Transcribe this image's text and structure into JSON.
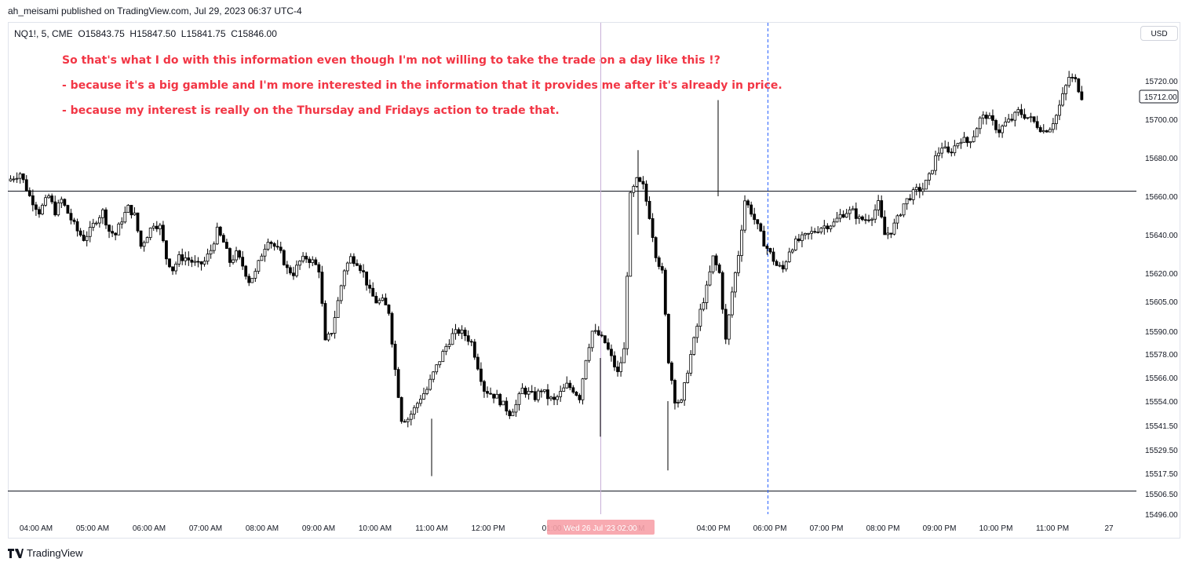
{
  "header": {
    "published": "ah_meisami published on TradingView.com, Jul 29, 2023 06:37 UTC-4",
    "symbol": "NQ1!, 5, CME",
    "ohlc": "O15843.75  H15847.50  L15841.75  C15846.00",
    "currency": "USD"
  },
  "annotations": [
    "So that's what I do with this information even though I'm not willing to take the trade on a day like this !?",
    "- because it's a big gamble and I'm more interested in the information that it provides me after it's already in price.",
    "- because my interest is really on the Thursday and Fridays action to trade that."
  ],
  "footer": {
    "brand": "TradingView"
  },
  "colors": {
    "text_red": "#f23645",
    "candle": "#000000",
    "grid_line": "#000000",
    "vline": "#2962ff",
    "crosshair_label": "#f7a1a8"
  },
  "chart_data": {
    "type": "candlestick",
    "interval": "5",
    "y_ticks": [
      "15496.00",
      "15506.50",
      "15517.50",
      "15529.50",
      "15541.50",
      "15554.00",
      "15566.00",
      "15578.00",
      "15590.00",
      "15605.00",
      "15620.00",
      "15640.00",
      "15660.00",
      "15680.00",
      "15700.00",
      "15720.00"
    ],
    "x_ticks": [
      "04:00 AM",
      "05:00 AM",
      "06:00 AM",
      "07:00 AM",
      "08:00 AM",
      "09:00 AM",
      "10:00 AM",
      "11:00 AM",
      "12:00 PM",
      "01:00 PM",
      "03:00 PM",
      "04:00 PM",
      "06:00 PM",
      "07:00 PM",
      "08:00 PM",
      "09:00 PM",
      "10:00 PM",
      "11:00 PM",
      "27"
    ],
    "last_price": "15712.00",
    "hlines": [
      15663,
      15508
    ],
    "crosshair_label": "Wed 26 Jul '23 02:00",
    "grid": false,
    "price_path": [
      [
        0,
        15668
      ],
      [
        4,
        15672
      ],
      [
        7,
        15660
      ],
      [
        10,
        15652
      ],
      [
        13,
        15660
      ],
      [
        15,
        15652
      ],
      [
        17,
        15658
      ],
      [
        20,
        15648
      ],
      [
        22,
        15642
      ],
      [
        24,
        15638
      ],
      [
        26,
        15642
      ],
      [
        28,
        15648
      ],
      [
        30,
        15652
      ],
      [
        32,
        15642
      ],
      [
        34,
        15640
      ],
      [
        36,
        15648
      ],
      [
        38,
        15654
      ],
      [
        40,
        15650
      ],
      [
        42,
        15634
      ],
      [
        44,
        15640
      ],
      [
        46,
        15646
      ],
      [
        48,
        15644
      ],
      [
        50,
        15628
      ],
      [
        52,
        15622
      ],
      [
        54,
        15628
      ],
      [
        56,
        15628
      ],
      [
        58,
        15626
      ],
      [
        60,
        15624
      ],
      [
        62,
        15626
      ],
      [
        64,
        15632
      ],
      [
        66,
        15642
      ],
      [
        68,
        15636
      ],
      [
        70,
        15626
      ],
      [
        72,
        15630
      ],
      [
        74,
        15624
      ],
      [
        76,
        15616
      ],
      [
        78,
        15620
      ],
      [
        80,
        15630
      ],
      [
        82,
        15638
      ],
      [
        84,
        15634
      ],
      [
        86,
        15630
      ],
      [
        88,
        15622
      ],
      [
        90,
        15620
      ],
      [
        92,
        15626
      ],
      [
        94,
        15628
      ],
      [
        96,
        15626
      ],
      [
        98,
        15622
      ],
      [
        100,
        15584
      ],
      [
        102,
        15590
      ],
      [
        104,
        15605
      ],
      [
        106,
        15622
      ],
      [
        108,
        15628
      ],
      [
        110,
        15626
      ],
      [
        112,
        15620
      ],
      [
        114,
        15610
      ],
      [
        116,
        15605
      ],
      [
        118,
        15605
      ],
      [
        120,
        15600
      ],
      [
        122,
        15570
      ],
      [
        124,
        15545
      ],
      [
        126,
        15545
      ],
      [
        128,
        15550
      ],
      [
        130,
        15556
      ],
      [
        132,
        15560
      ],
      [
        134,
        15568
      ],
      [
        136,
        15575
      ],
      [
        138,
        15582
      ],
      [
        140,
        15588
      ],
      [
        142,
        15590
      ],
      [
        144,
        15588
      ],
      [
        146,
        15584
      ],
      [
        148,
        15572
      ],
      [
        150,
        15560
      ],
      [
        152,
        15558
      ],
      [
        154,
        15556
      ],
      [
        156,
        15552
      ],
      [
        158,
        15548
      ],
      [
        160,
        15552
      ],
      [
        162,
        15560
      ],
      [
        164,
        15558
      ],
      [
        166,
        15556
      ],
      [
        168,
        15560
      ],
      [
        170,
        15556
      ],
      [
        172,
        15554
      ],
      [
        174,
        15558
      ],
      [
        176,
        15562
      ],
      [
        178,
        15560
      ],
      [
        180,
        15556
      ],
      [
        182,
        15576
      ],
      [
        184,
        15590
      ],
      [
        186,
        15588
      ],
      [
        188,
        15584
      ],
      [
        190,
        15576
      ],
      [
        192,
        15568
      ],
      [
        194,
        15580
      ],
      [
        196,
        15660
      ],
      [
        198,
        15668
      ],
      [
        200,
        15665
      ],
      [
        202,
        15650
      ],
      [
        204,
        15630
      ],
      [
        206,
        15620
      ],
      [
        208,
        15575
      ],
      [
        210,
        15555
      ],
      [
        212,
        15553
      ],
      [
        214,
        15570
      ],
      [
        216,
        15585
      ],
      [
        218,
        15600
      ],
      [
        220,
        15612
      ],
      [
        222,
        15628
      ],
      [
        224,
        15620
      ],
      [
        226,
        15585
      ],
      [
        228,
        15610
      ],
      [
        230,
        15630
      ],
      [
        232,
        15658
      ],
      [
        234,
        15652
      ],
      [
        236,
        15644
      ],
      [
        238,
        15636
      ],
      [
        240,
        15630
      ],
      [
        242,
        15624
      ],
      [
        244,
        15622
      ],
      [
        246,
        15632
      ],
      [
        248,
        15636
      ],
      [
        250,
        15638
      ],
      [
        252,
        15640
      ],
      [
        254,
        15642
      ],
      [
        256,
        15644
      ],
      [
        258,
        15645
      ],
      [
        260,
        15646
      ],
      [
        262,
        15650
      ],
      [
        264,
        15652
      ],
      [
        266,
        15652
      ],
      [
        268,
        15648
      ],
      [
        270,
        15648
      ],
      [
        272,
        15650
      ],
      [
        274,
        15656
      ],
      [
        276,
        15640
      ],
      [
        278,
        15642
      ],
      [
        280,
        15648
      ],
      [
        282,
        15656
      ],
      [
        284,
        15660
      ],
      [
        286,
        15663
      ],
      [
        288,
        15664
      ],
      [
        290,
        15670
      ],
      [
        292,
        15680
      ],
      [
        294,
        15686
      ],
      [
        296,
        15682
      ],
      [
        298,
        15686
      ],
      [
        300,
        15690
      ],
      [
        302,
        15688
      ],
      [
        304,
        15692
      ],
      [
        306,
        15700
      ],
      [
        308,
        15702
      ],
      [
        310,
        15698
      ],
      [
        312,
        15694
      ],
      [
        314,
        15698
      ],
      [
        316,
        15700
      ],
      [
        318,
        15704
      ],
      [
        320,
        15702
      ],
      [
        322,
        15700
      ],
      [
        324,
        15697
      ],
      [
        326,
        15694
      ],
      [
        328,
        15696
      ],
      [
        330,
        15702
      ],
      [
        332,
        15712
      ],
      [
        334,
        15722
      ],
      [
        336,
        15720
      ],
      [
        338,
        15712
      ]
    ]
  }
}
